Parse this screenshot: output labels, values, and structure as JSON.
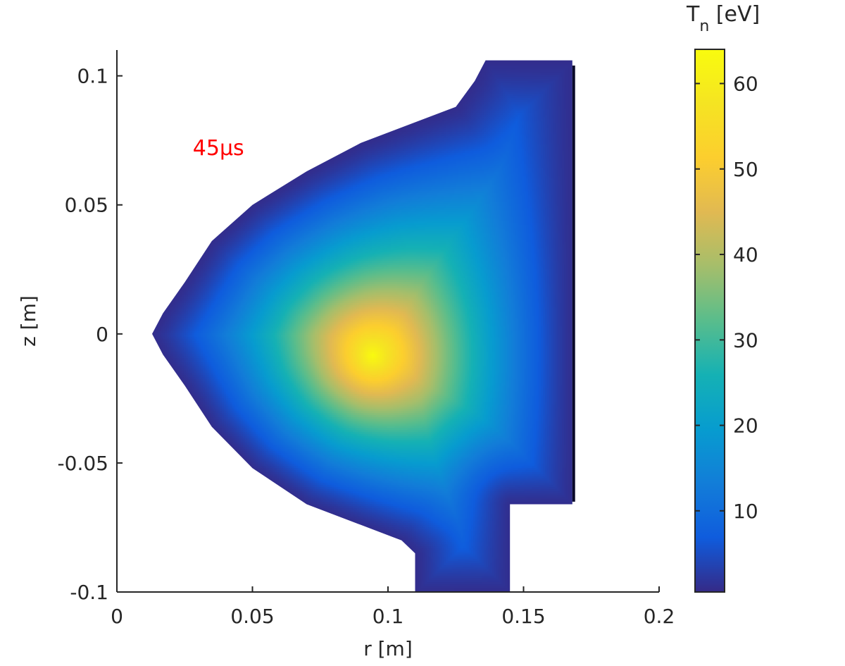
{
  "chart_data": {
    "type": "heatmap",
    "title": "",
    "xlabel": "r [m]",
    "ylabel": "z [m]",
    "xlim": [
      0,
      0.2
    ],
    "ylim": [
      -0.1,
      0.11
    ],
    "xticks": [
      0,
      0.05,
      0.1,
      0.15,
      0.2
    ],
    "xtick_labels": [
      "0",
      "0.05",
      "0.1",
      "0.15",
      "0.2"
    ],
    "yticks": [
      -0.1,
      -0.05,
      0,
      0.05,
      0.1
    ],
    "ytick_labels": [
      "-0.1",
      "-0.05",
      "0",
      "0.05",
      "0.1"
    ],
    "annotation": {
      "text": "45μs",
      "color": "#ff0000",
      "r": 0.028,
      "z": 0.072
    },
    "colorbar": {
      "title_main": "T",
      "title_sub": "n",
      "title_unit": " [eV]",
      "range": [
        0.5,
        64
      ],
      "ticks": [
        10,
        20,
        30,
        40,
        50,
        60
      ],
      "tick_labels": [
        "10",
        "20",
        "30",
        "40",
        "50",
        "60"
      ],
      "colormap": "parula"
    },
    "field": {
      "peak_value": 64,
      "peak_location": {
        "r": 0.094,
        "z": -0.008
      },
      "edge_value": 1,
      "boundary_rz": [
        [
          0.136,
          0.106
        ],
        [
          0.168,
          0.106
        ],
        [
          0.168,
          -0.066
        ],
        [
          0.145,
          -0.066
        ],
        [
          0.145,
          -0.1
        ],
        [
          0.11,
          -0.1
        ],
        [
          0.11,
          -0.085
        ],
        [
          0.105,
          -0.08
        ],
        [
          0.09,
          -0.074
        ],
        [
          0.07,
          -0.066
        ],
        [
          0.05,
          -0.052
        ],
        [
          0.035,
          -0.036
        ],
        [
          0.025,
          -0.02
        ],
        [
          0.017,
          -0.008
        ],
        [
          0.013,
          0.0
        ],
        [
          0.017,
          0.008
        ],
        [
          0.025,
          0.02
        ],
        [
          0.035,
          0.036
        ],
        [
          0.05,
          0.05
        ],
        [
          0.07,
          0.063
        ],
        [
          0.09,
          0.074
        ],
        [
          0.11,
          0.082
        ],
        [
          0.125,
          0.088
        ],
        [
          0.132,
          0.098
        ]
      ],
      "wall_line": {
        "r": 0.1685,
        "z_range": [
          -0.065,
          0.104
        ],
        "color": "#0a0a2a"
      }
    }
  }
}
